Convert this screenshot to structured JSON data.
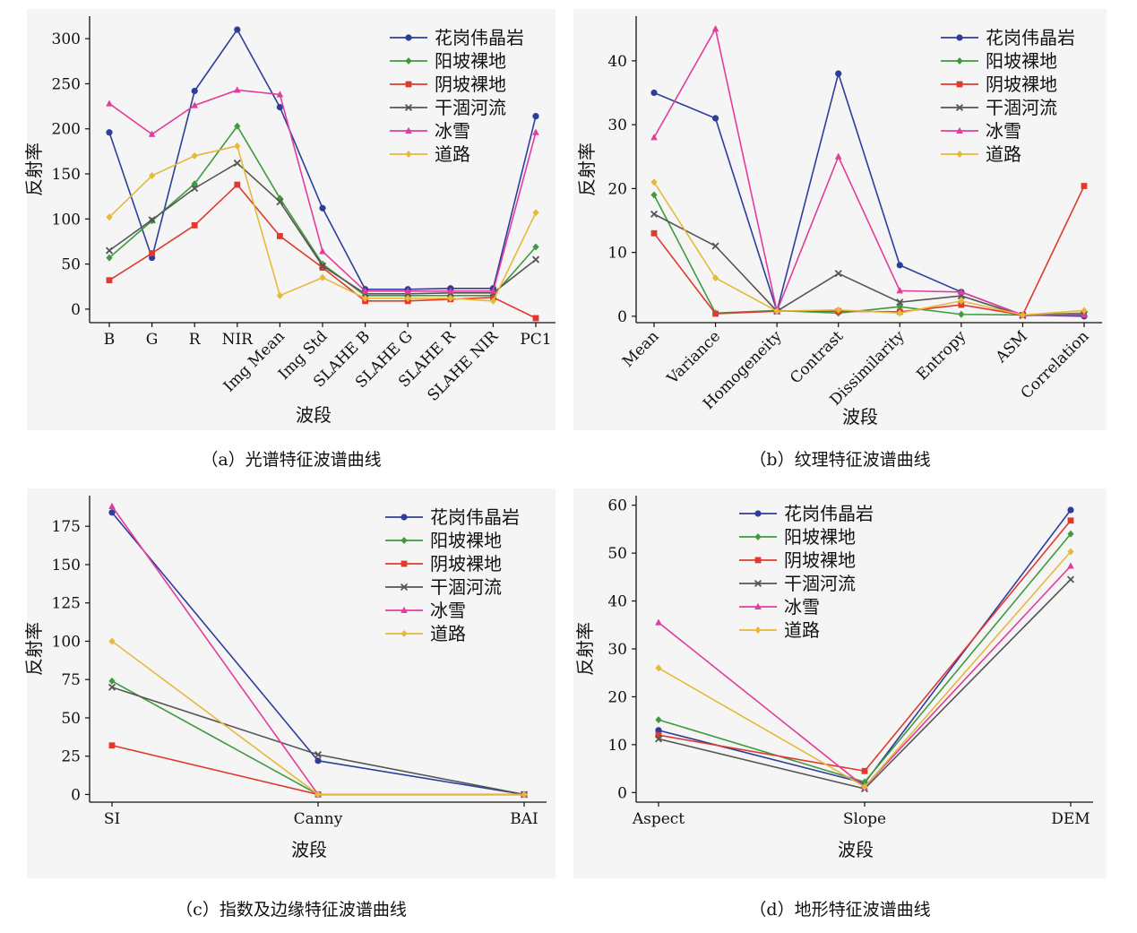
{
  "legend_labels": [
    "花岗伟晶岩",
    "阳坡裸地",
    "阴坡裸地",
    "干涸河流",
    "冰雪",
    "道路"
  ],
  "series_colors": [
    "#2e3d9a",
    "#3f9a3f",
    "#e03a2e",
    "#555555",
    "#e23c9c",
    "#e6b93a"
  ],
  "series_markers": [
    "circle",
    "diamond",
    "square",
    "x",
    "triangle",
    "diamond"
  ],
  "captions": [
    "（a）光谱特征波谱曲线",
    "（b）纹理特征波谱曲线",
    "（c）指数及边缘特征波谱曲线",
    "（d）地形特征波谱曲线"
  ],
  "chart_data": [
    {
      "type": "line",
      "xlabel": "波段",
      "ylabel": "反射率",
      "ylim": [
        -15,
        325
      ],
      "yticks": [
        0,
        50,
        100,
        150,
        200,
        250,
        300
      ],
      "categories": [
        "B",
        "G",
        "R",
        "NIR",
        "Img Mean",
        "Img Std",
        "SLAHE B",
        "SLAHE G",
        "SLAHE R",
        "SLAHE NIR",
        "PC1"
      ],
      "legend_position": "top-right",
      "series": [
        {
          "name": "花岗伟晶岩",
          "values": [
            196,
            57,
            242,
            310,
            224,
            112,
            22,
            22,
            23,
            23,
            214
          ]
        },
        {
          "name": "阳坡裸地",
          "values": [
            57,
            98,
            139,
            203,
            123,
            50,
            15,
            15,
            15,
            15,
            69
          ]
        },
        {
          "name": "阴坡裸地",
          "values": [
            32,
            62,
            93,
            138,
            81,
            46,
            9,
            9,
            11,
            13,
            -10
          ]
        },
        {
          "name": "干涸河流",
          "values": [
            65,
            99,
            134,
            162,
            119,
            48,
            17,
            17,
            18,
            18,
            55
          ]
        },
        {
          "name": "冰雪",
          "values": [
            228,
            194,
            226,
            243,
            238,
            64,
            20,
            20,
            20,
            20,
            196
          ]
        },
        {
          "name": "道路",
          "values": [
            102,
            148,
            170,
            181,
            15,
            35,
            12,
            12,
            12,
            9,
            107
          ]
        }
      ]
    },
    {
      "type": "line",
      "xlabel": "波段",
      "ylabel": "反射率",
      "ylim": [
        -1,
        47
      ],
      "yticks": [
        0,
        10,
        20,
        30,
        40
      ],
      "categories": [
        "Mean",
        "Variance",
        "Homogeneity",
        "Contrast",
        "Dissimilarity",
        "Entropy",
        "ASM",
        "Correlation"
      ],
      "legend_position": "top-right",
      "series": [
        {
          "name": "花岗伟晶岩",
          "values": [
            35,
            31,
            0.8,
            38,
            8,
            3.8,
            0.2,
            0
          ]
        },
        {
          "name": "阳坡裸地",
          "values": [
            19,
            0.5,
            0.9,
            0.5,
            1.5,
            0.3,
            0.2,
            0.5
          ]
        },
        {
          "name": "阴坡裸地",
          "values": [
            13,
            0.4,
            0.8,
            0.8,
            0.7,
            1.8,
            0.2,
            20.4
          ]
        },
        {
          "name": "干涸河流",
          "values": [
            16,
            11,
            0.8,
            6.7,
            2.2,
            3.2,
            0.1,
            0.3
          ]
        },
        {
          "name": "冰雪",
          "values": [
            28,
            45,
            0.8,
            25,
            4,
            3.8,
            0.2,
            0.2
          ]
        },
        {
          "name": "道路",
          "values": [
            21,
            6,
            0.8,
            1,
            0.5,
            2.4,
            0.2,
            0.9
          ]
        }
      ]
    },
    {
      "type": "line",
      "xlabel": "波段",
      "ylabel": "反射率",
      "ylim": [
        -5,
        195
      ],
      "yticks": [
        0,
        25,
        50,
        75,
        100,
        125,
        150,
        175
      ],
      "categories": [
        "SI",
        "Canny",
        "BAI"
      ],
      "legend_position": "top-right",
      "series": [
        {
          "name": "花岗伟晶岩",
          "values": [
            184,
            22,
            0
          ]
        },
        {
          "name": "阳坡裸地",
          "values": [
            74,
            0,
            0
          ]
        },
        {
          "name": "阴坡裸地",
          "values": [
            32,
            0,
            0
          ]
        },
        {
          "name": "干涸河流",
          "values": [
            70,
            26,
            0
          ]
        },
        {
          "name": "冰雪",
          "values": [
            188,
            0,
            0
          ]
        },
        {
          "name": "道路",
          "values": [
            100,
            0,
            0
          ]
        }
      ]
    },
    {
      "type": "line",
      "xlabel": "波段",
      "ylabel": "反射率",
      "ylim": [
        -2,
        62
      ],
      "yticks": [
        0,
        10,
        20,
        30,
        40,
        50,
        60
      ],
      "categories": [
        "Aspect",
        "Slope",
        "DEM"
      ],
      "legend_position": "top-left",
      "series": [
        {
          "name": "花岗伟晶岩",
          "values": [
            13,
            2,
            59
          ]
        },
        {
          "name": "阳坡裸地",
          "values": [
            15.2,
            2.2,
            54
          ]
        },
        {
          "name": "阴坡裸地",
          "values": [
            12,
            4.5,
            56.8
          ]
        },
        {
          "name": "干涸河流",
          "values": [
            11.2,
            0.8,
            44.5
          ]
        },
        {
          "name": "冰雪",
          "values": [
            35.5,
            1.2,
            47.3
          ]
        },
        {
          "name": "道路",
          "values": [
            26,
            1.2,
            50.3
          ]
        }
      ]
    }
  ]
}
